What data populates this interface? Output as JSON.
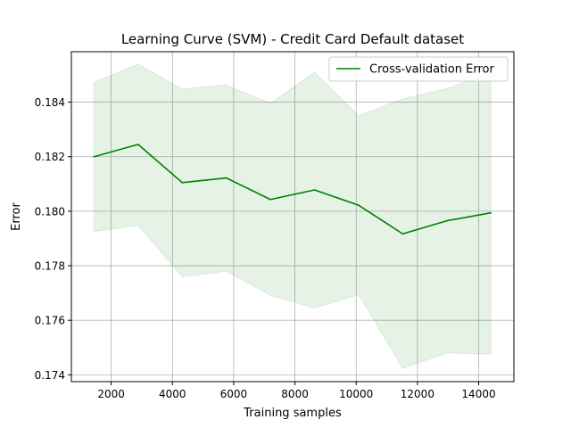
{
  "chart_data": {
    "type": "line",
    "title": "Learning Curve (SVM) - Credit Card Default dataset",
    "xlabel": "Training samples",
    "ylabel": "Error",
    "xlim": [
      700,
      15150
    ],
    "ylim": [
      0.17375,
      0.18585
    ],
    "grid": true,
    "legend_position": "top-right",
    "x_ticks": [
      2000,
      4000,
      6000,
      8000,
      10000,
      12000,
      14000
    ],
    "x_tick_labels": [
      "2000",
      "4000",
      "6000",
      "8000",
      "10000",
      "12000",
      "14000"
    ],
    "y_ticks": [
      0.174,
      0.176,
      0.178,
      0.18,
      0.182,
      0.184
    ],
    "y_tick_labels": [
      "0.174",
      "0.176",
      "0.178",
      "0.180",
      "0.182",
      "0.184"
    ],
    "series": [
      {
        "name": "Cross-validation Error",
        "color": "#008000",
        "band_color": "#008000",
        "x": [
          1440,
          2880,
          4320,
          5760,
          7200,
          8640,
          10080,
          11520,
          12960,
          14400
        ],
        "values": [
          0.182,
          0.18245,
          0.18105,
          0.18122,
          0.18043,
          0.18078,
          0.18022,
          0.17917,
          0.17965,
          0.17994
        ],
        "upper": [
          0.18473,
          0.1854,
          0.18448,
          0.18463,
          0.18396,
          0.1851,
          0.1835,
          0.18412,
          0.1845,
          0.18507
        ],
        "lower": [
          0.17925,
          0.17948,
          0.1776,
          0.1778,
          0.17692,
          0.17645,
          0.17694,
          0.17424,
          0.1748,
          0.17476
        ]
      }
    ]
  }
}
